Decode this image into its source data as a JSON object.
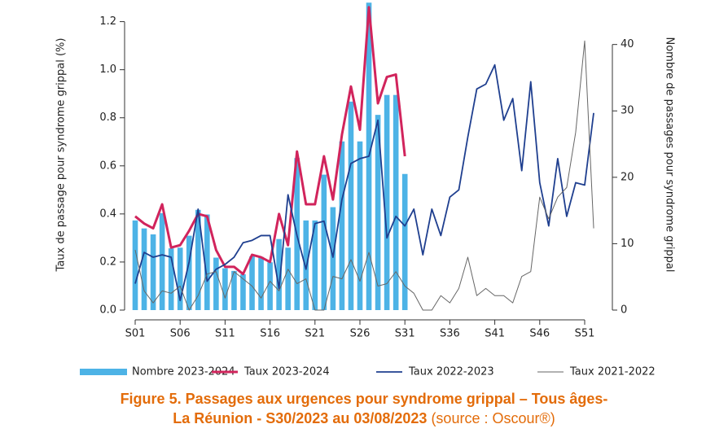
{
  "chart_data": {
    "type": "combo",
    "title_lines": [
      "Figure 5. Passages aux urgences pour syndrome grippal – Tous âges-",
      "La Réunion - S30/2023 au 03/08/2023"
    ],
    "source": "(source : Oscour®)",
    "y_label": "Taux de passage pour syndrome grippal (%)",
    "y2_label": "Nombre de passages pour syndrome grippal",
    "categories": [
      "S01",
      null,
      null,
      null,
      null,
      "S06",
      null,
      null,
      null,
      null,
      "S11",
      null,
      null,
      null,
      null,
      "S16",
      null,
      null,
      null,
      null,
      "S21",
      null,
      null,
      null,
      null,
      "S26",
      null,
      null,
      null,
      null,
      "S31",
      null,
      null,
      null,
      null,
      "S36",
      null,
      null,
      null,
      null,
      "S41",
      null,
      null,
      null,
      null,
      "S46",
      null,
      null,
      null,
      null,
      "S51",
      null
    ],
    "ylim": [
      0,
      1.29
    ],
    "yticks": [
      {
        "value": 0,
        "label": "0.0"
      },
      0.2,
      0.4,
      0.6,
      0.8,
      {
        "value": 1,
        "label": "1.0"
      },
      1.2
    ],
    "y2lim": [
      0,
      46.7
    ],
    "y2ticks": [
      0,
      10,
      20,
      30,
      40
    ],
    "series": [
      {
        "name": "Nombre 2023-2024",
        "type": "bar",
        "axis": "y2",
        "color": "#4db3e6",
        "values": [
          13.5,
          12.3,
          11.4,
          14.6,
          9.3,
          9.4,
          11.2,
          15.1,
          14.4,
          7.9,
          6.3,
          5.9,
          5.4,
          8.1,
          8.0,
          7.2,
          10.7,
          9.4,
          22.9,
          13.5,
          13.5,
          20.4,
          15.5,
          25.4,
          31.4,
          25.4,
          46.3,
          29.4,
          32.4,
          32.4,
          20.5,
          null,
          null,
          null,
          null,
          null,
          null,
          null,
          null,
          null,
          null,
          null,
          null,
          null,
          null,
          null,
          null,
          null,
          null,
          null,
          null,
          null
        ]
      },
      {
        "name": "Taux 2023-2024",
        "type": "line",
        "color": "#d1245c",
        "width": 3,
        "values": [
          0.39,
          0.36,
          0.34,
          0.44,
          0.26,
          0.27,
          0.33,
          0.4,
          0.39,
          0.25,
          0.18,
          0.18,
          0.15,
          0.23,
          0.22,
          0.2,
          0.4,
          0.27,
          0.66,
          0.44,
          0.44,
          0.64,
          0.46,
          0.73,
          0.93,
          0.75,
          1.26,
          0.86,
          0.97,
          0.98,
          0.64,
          null,
          null,
          null,
          null,
          null,
          null,
          null,
          null,
          null,
          null,
          null,
          null,
          null,
          null,
          null,
          null,
          null,
          null,
          null,
          null,
          null
        ]
      },
      {
        "name": "Taux 2022-2023",
        "type": "line",
        "color": "#1f3f8f",
        "width": 1.8,
        "values": [
          0.11,
          0.24,
          0.22,
          0.23,
          0.22,
          0.04,
          0.2,
          0.42,
          0.12,
          0.17,
          0.19,
          0.22,
          0.28,
          0.29,
          0.31,
          0.31,
          0.09,
          0.48,
          0.31,
          0.17,
          0.36,
          0.37,
          0.22,
          0.46,
          0.61,
          0.63,
          0.64,
          0.79,
          0.3,
          0.39,
          0.35,
          0.42,
          0.23,
          0.42,
          0.31,
          0.47,
          0.5,
          0.72,
          0.92,
          0.94,
          1.02,
          0.79,
          0.88,
          0.58,
          0.95,
          0.53,
          0.35,
          0.63,
          0.39,
          0.53,
          0.52,
          0.82
        ]
      },
      {
        "name": "Taux 2021-2022",
        "type": "line",
        "color": "#666666",
        "width": 1,
        "values": [
          0.25,
          0.08,
          0.03,
          0.08,
          0.07,
          0.1,
          0.0,
          0.06,
          0.15,
          0.16,
          0.05,
          0.16,
          0.13,
          0.1,
          0.05,
          0.12,
          0.08,
          0.17,
          0.11,
          0.13,
          0.0,
          0.0,
          0.14,
          0.13,
          0.21,
          0.12,
          0.24,
          0.1,
          0.11,
          0.16,
          0.1,
          0.07,
          0.0,
          0.0,
          0.06,
          0.03,
          0.09,
          0.22,
          0.06,
          0.09,
          0.06,
          0.06,
          0.03,
          0.14,
          0.16,
          0.47,
          0.38,
          0.47,
          0.51,
          0.74,
          1.12,
          0.34
        ]
      }
    ]
  }
}
